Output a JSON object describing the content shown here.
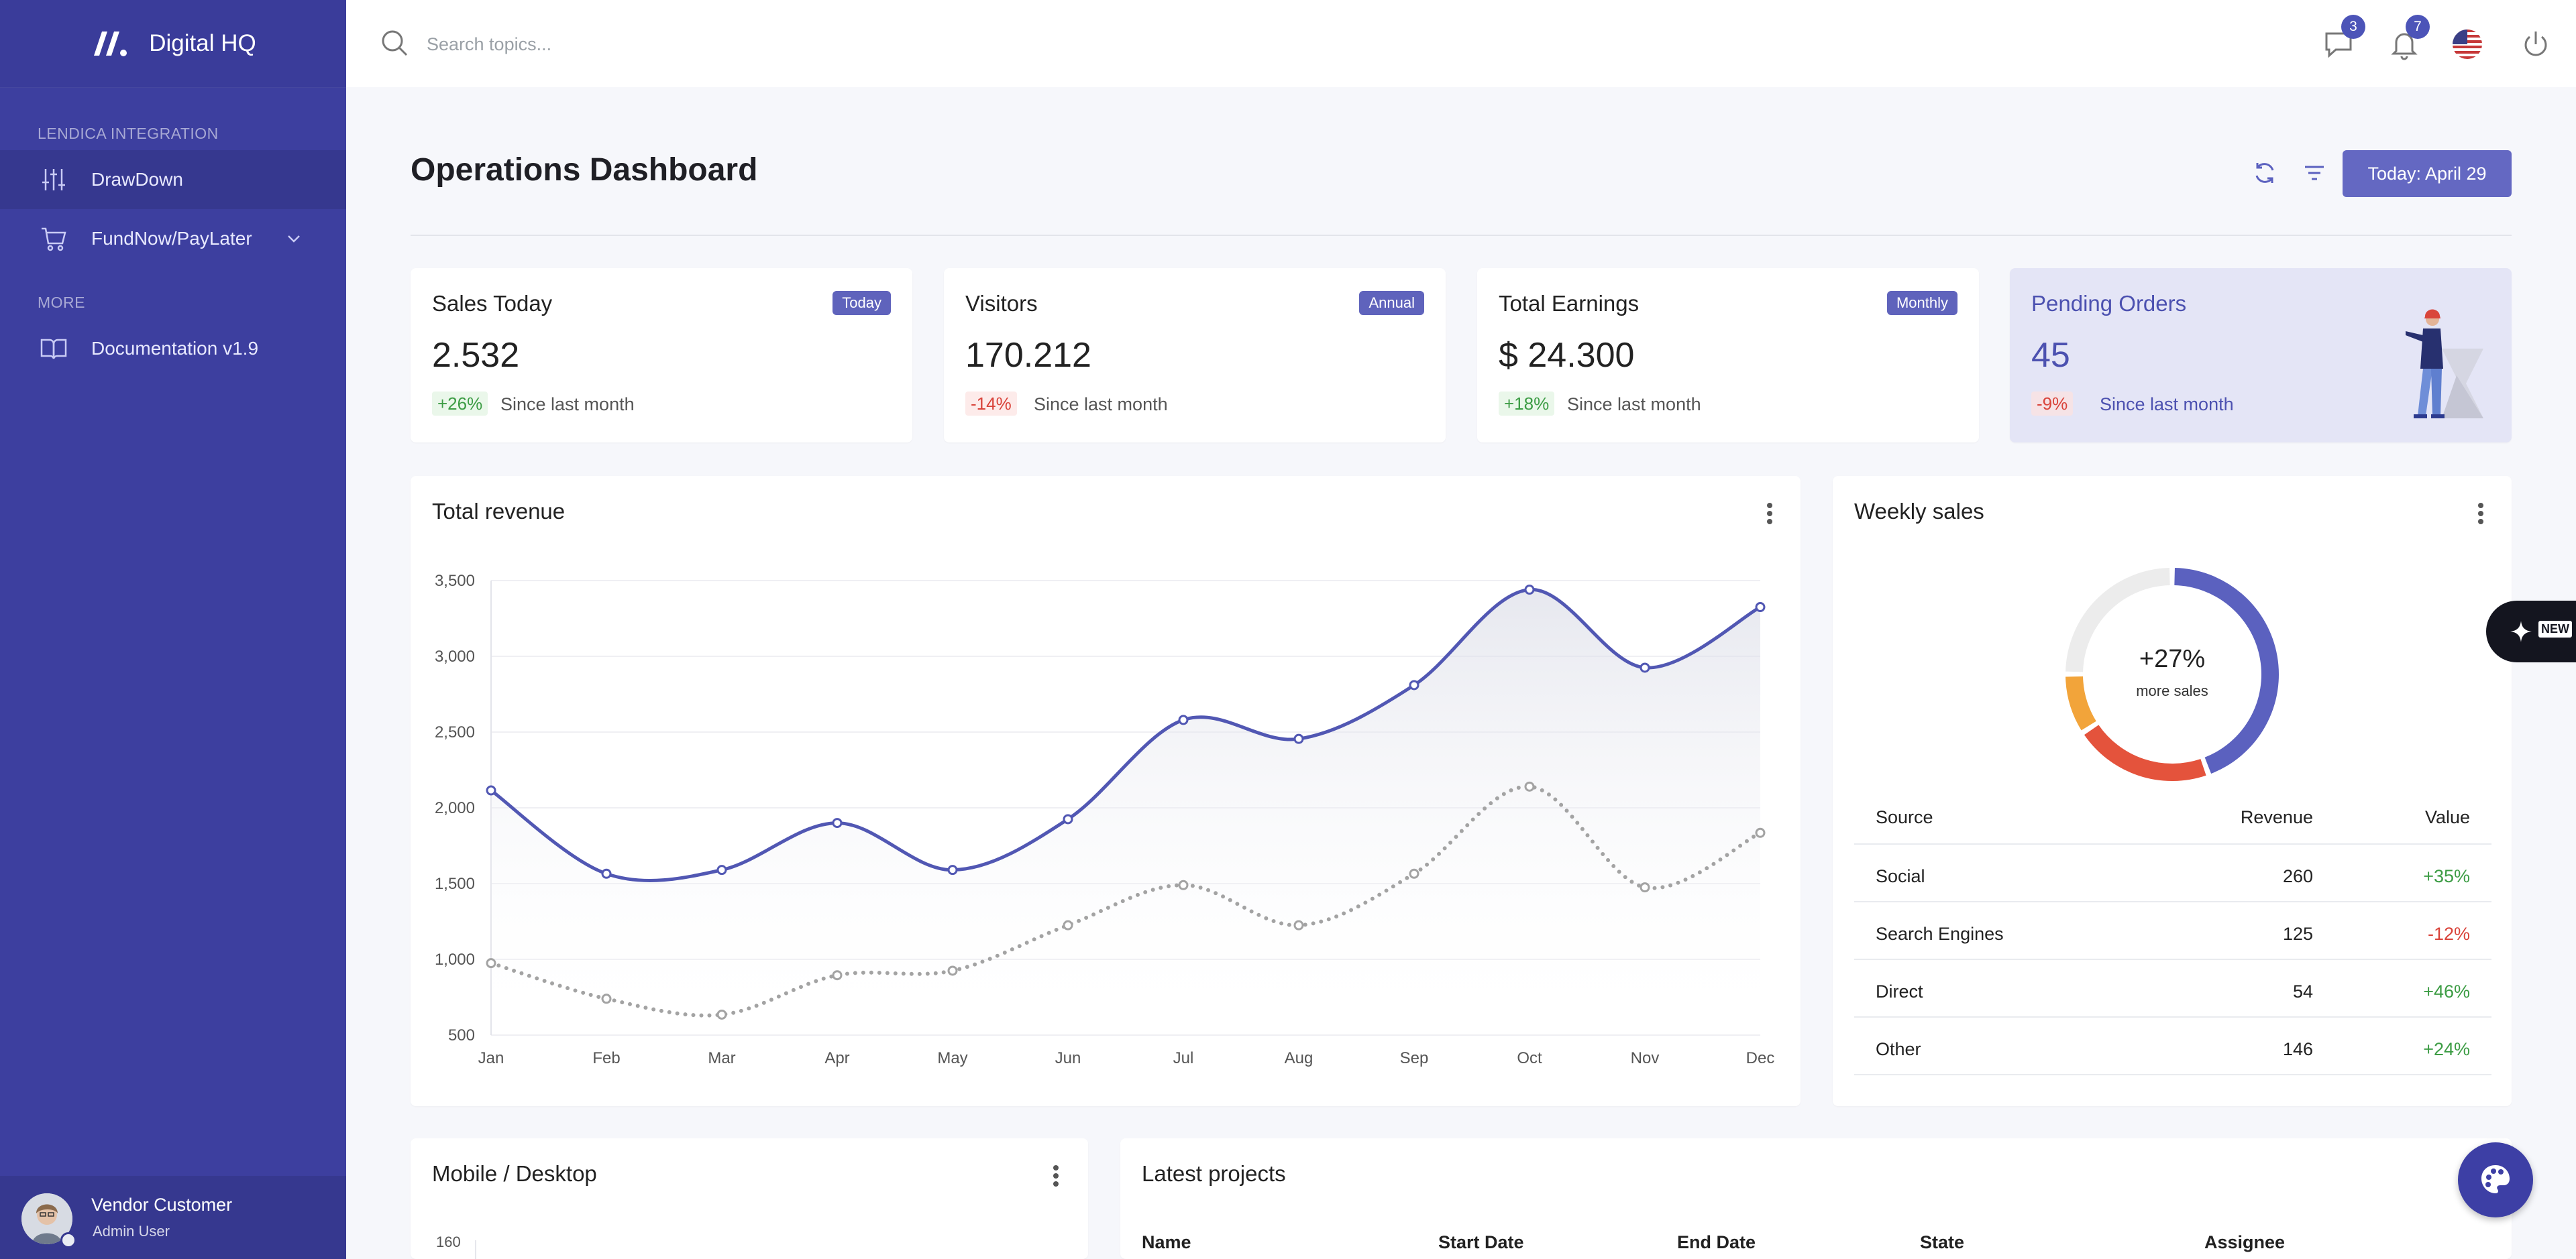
{
  "brand": {
    "name": "Digital HQ"
  },
  "sidebar": {
    "section_integration": "LENDICA INTEGRATION",
    "section_more": "MORE",
    "items": [
      {
        "label": "DrawDown",
        "icon": "sliders-icon"
      },
      {
        "label": "FundNow/PayLater",
        "icon": "cart-icon"
      },
      {
        "label": "Documentation v1.9",
        "icon": "book-icon"
      }
    ],
    "user": {
      "name": "Vendor Customer",
      "role": "Admin User"
    }
  },
  "topbar": {
    "search_placeholder": "Search topics...",
    "messages_count": "3",
    "notifications_count": "7"
  },
  "header": {
    "title": "Operations Dashboard",
    "date_button": "Today: April 29"
  },
  "stats": [
    {
      "title": "Sales Today",
      "pill": "Today",
      "value": "2.532",
      "delta": "+26%",
      "since": "Since last month"
    },
    {
      "title": "Visitors",
      "pill": "Annual",
      "value": "170.212",
      "delta": "-14%",
      "since": "Since last month"
    },
    {
      "title": "Total Earnings",
      "pill": "Monthly",
      "value": "$ 24.300",
      "delta": "+18%",
      "since": "Since last month"
    },
    {
      "title": "Pending Orders",
      "value": "45",
      "delta": "-9%",
      "since": "Since last month"
    }
  ],
  "revenue": {
    "title": "Total revenue"
  },
  "weekly": {
    "title": "Weekly sales",
    "center_value": "+27%",
    "center_label": "more sales",
    "table_headers": [
      "Source",
      "Revenue",
      "Value"
    ],
    "rows": [
      {
        "source": "Social",
        "revenue": "260",
        "value": "+35%"
      },
      {
        "source": "Search Engines",
        "revenue": "125",
        "value": "-12%"
      },
      {
        "source": "Direct",
        "revenue": "54",
        "value": "+46%"
      },
      {
        "source": "Other",
        "revenue": "146",
        "value": "+24%"
      }
    ]
  },
  "mobile": {
    "title": "Mobile / Desktop",
    "first_tick": "160"
  },
  "projects": {
    "title": "Latest projects",
    "headers": [
      "Name",
      "Start Date",
      "End Date",
      "State",
      "Assignee"
    ]
  },
  "ai_tab": {
    "badge": "NEW"
  },
  "colors": {
    "sidebar": "#3d3f9f",
    "accent": "#5f63bc",
    "positive": "#3c9c44",
    "negative": "#d9433a"
  },
  "chart_data": [
    {
      "type": "line",
      "categories": [
        "Jan",
        "Feb",
        "Mar",
        "Apr",
        "May",
        "Jun",
        "Jul",
        "Aug",
        "Sep",
        "Oct",
        "Nov",
        "Dec"
      ],
      "ylim": [
        500,
        3500
      ],
      "yticks": [
        "500",
        "1,000",
        "1,500",
        "2,000",
        "2,500",
        "3,000",
        "3,500"
      ],
      "series": [
        {
          "values": [
            2115,
            1565,
            1590,
            1900,
            1590,
            1925,
            2580,
            2455,
            2810,
            3440,
            2925,
            3325
          ],
          "color": "#5157b3",
          "style": "solid",
          "fill": true
        },
        {
          "values": [
            975,
            740,
            635,
            895,
            925,
            1225,
            1490,
            1225,
            1565,
            2140,
            1475,
            1835
          ],
          "color": "#a3a3a3",
          "style": "dotted"
        }
      ]
    },
    {
      "type": "pie",
      "variant": "doughnut",
      "slices": [
        {
          "value": 260,
          "color": "#5b61bf"
        },
        {
          "value": 125,
          "color": "#e4533c"
        },
        {
          "value": 54,
          "color": "#f2a43a"
        },
        {
          "value": 146,
          "color": "#ececec"
        }
      ]
    }
  ]
}
